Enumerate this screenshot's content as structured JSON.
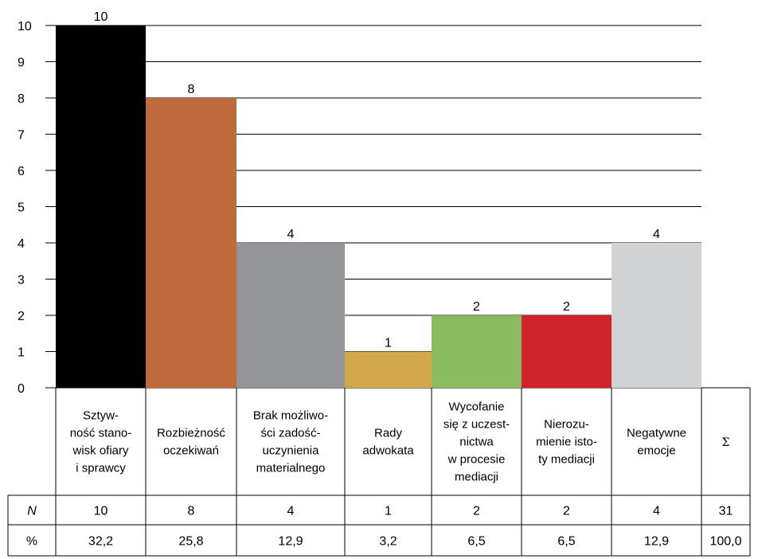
{
  "chart_data": {
    "type": "bar",
    "categories": [
      [
        "Sztyw-",
        "ność stano-",
        "wisk ofiary",
        "i sprawcy"
      ],
      [
        "Rozbieżność",
        "oczekiwań"
      ],
      [
        "Brak możliwo-",
        "ści zadość-",
        "uczynienia",
        "materialnego"
      ],
      [
        "Rady",
        "adwokata"
      ],
      [
        "Wycofanie",
        "się z uczest-",
        "nictwa",
        "w procesie",
        "mediacji"
      ],
      [
        "Nierozu-",
        "mienie isto-",
        "ty mediacji"
      ],
      [
        "Negatywne",
        "emocje"
      ]
    ],
    "values": [
      10,
      8,
      4,
      1,
      2,
      2,
      4
    ],
    "colors": [
      "#000000",
      "#c0693a",
      "#939598",
      "#d3a84a",
      "#8cbb5e",
      "#d1232a",
      "#d1d2d4"
    ],
    "y_ticks": [
      "0",
      "1",
      "2",
      "3",
      "4",
      "5",
      "6",
      "7",
      "8",
      "9",
      "10"
    ],
    "ylim": [
      0,
      10
    ],
    "data_labels": [
      "10",
      "8",
      "4",
      "1",
      "2",
      "2",
      "4"
    ],
    "grid": true,
    "total_column_label": "Σ"
  },
  "table": {
    "rows": [
      {
        "label": "N",
        "cells": [
          "10",
          "8",
          "4",
          "1",
          "2",
          "2",
          "4",
          "31"
        ]
      },
      {
        "label": "%",
        "cells": [
          "32,2",
          "25,8",
          "12,9",
          "3,2",
          "6,5",
          "6,5",
          "12,9",
          "100,0"
        ]
      }
    ]
  }
}
